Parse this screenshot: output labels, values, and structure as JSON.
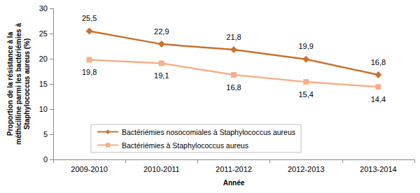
{
  "chart_data": {
    "type": "line",
    "x_label": "Année",
    "y_label": "Proportion de la résistance à la méthicilline parmi les bactériémies à Staphylococcus aureus (%)",
    "categories": [
      "2009-2010",
      "2010-2011",
      "2011-2012",
      "2012-2013",
      "2013-2014"
    ],
    "series": [
      {
        "name": "Bactériémies nosocomiales à Staphylococcus aureus",
        "color": "#c8722f",
        "marker": "diamond",
        "line_style": "solid",
        "values": [
          25.5,
          22.9,
          21.8,
          19.9,
          16.8
        ],
        "value_labels": [
          "25,5",
          "22,9",
          "21,8",
          "19,9",
          "16,8"
        ]
      },
      {
        "name": "Bactériémies à Staphylococcus aureus",
        "color": "#f4b08a",
        "marker": "square",
        "line_style": "solid",
        "values": [
          19.8,
          19.1,
          16.8,
          15.4,
          14.4
        ],
        "value_labels": [
          "19,8",
          "19,1",
          "16,8",
          "15,4",
          "14,4"
        ]
      }
    ],
    "ylim": [
      0,
      30
    ],
    "yticks": [
      0,
      5,
      10,
      15,
      20,
      25,
      30
    ],
    "grid": false,
    "legend": "lower left",
    "data_labels": true
  }
}
